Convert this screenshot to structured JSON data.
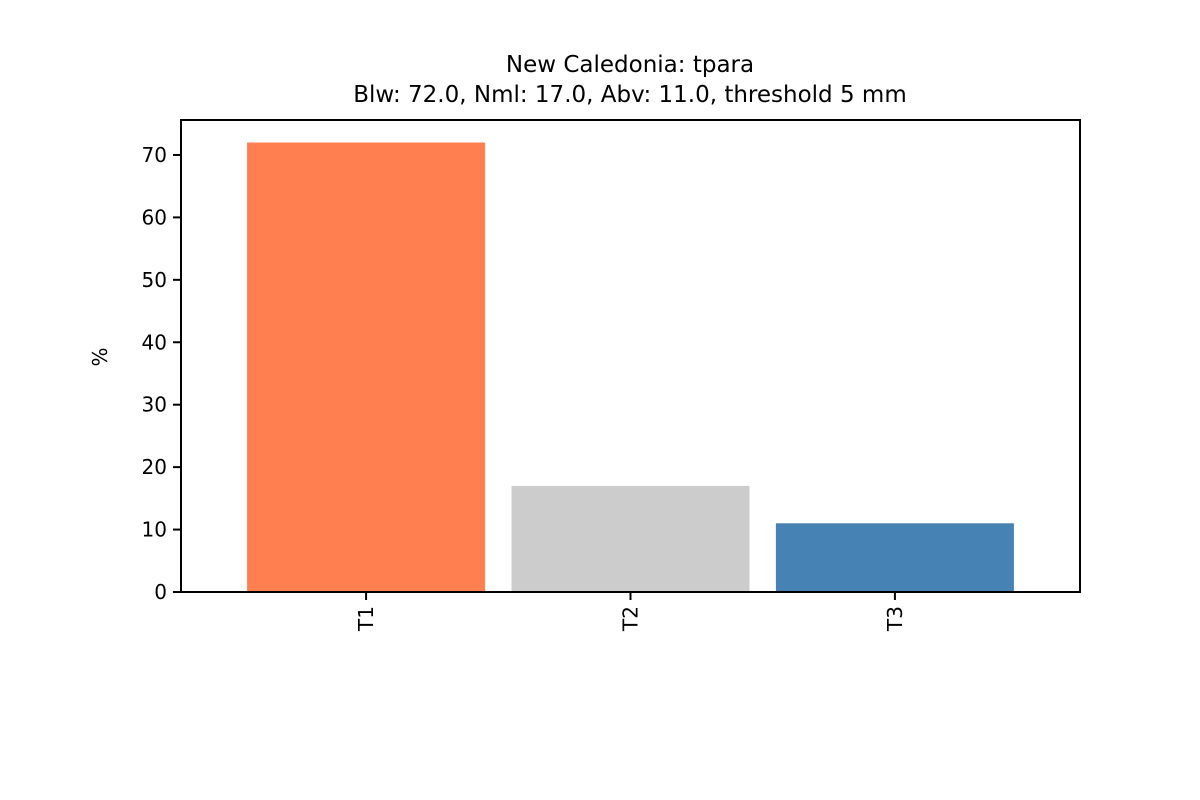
{
  "chart_data": {
    "type": "bar",
    "title": "New Caledonia: tpara",
    "subtitle": "Blw: 72.0, Nml: 17.0, Abv: 11.0, threshold 5 mm",
    "xlabel": "",
    "ylabel": "%",
    "categories": [
      "T1",
      "T2",
      "T3"
    ],
    "values": [
      72.0,
      17.0,
      11.0
    ],
    "colors": [
      "#ff7f50",
      "#cccccc",
      "#4682b4"
    ],
    "ylim": [
      0,
      75.6
    ],
    "yticks": [
      0,
      10,
      20,
      30,
      40,
      50,
      60,
      70
    ],
    "ytick_labels": [
      "0",
      "10",
      "20",
      "30",
      "40",
      "50",
      "60",
      "70"
    ],
    "grid": false,
    "legend": "none"
  }
}
